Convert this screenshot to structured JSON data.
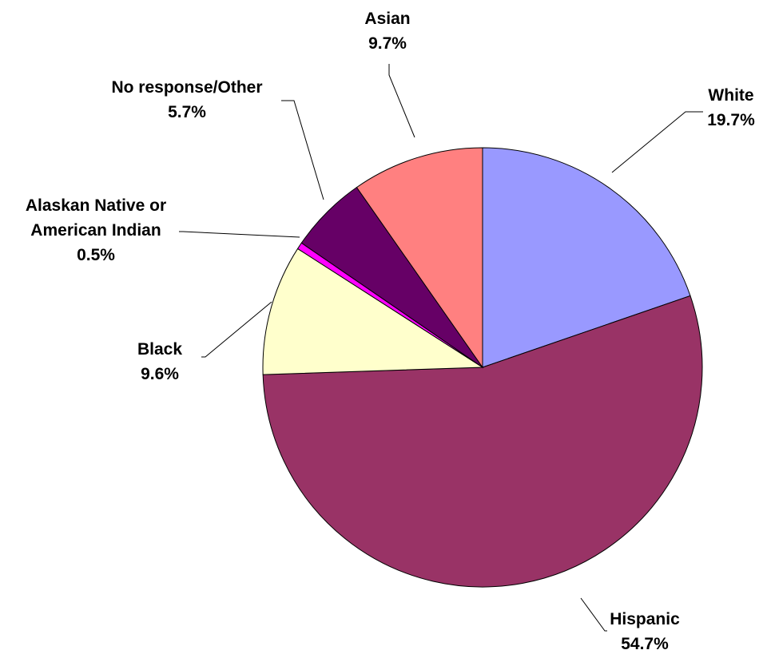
{
  "chart_data": {
    "type": "pie",
    "title": "",
    "start_angle_deg": 0,
    "direction": "clockwise",
    "slices": [
      {
        "label": "White",
        "lines": [
          "White"
        ],
        "value_text": "19.7%",
        "value": 19.7,
        "color": "#9999FF"
      },
      {
        "label": "Hispanic",
        "lines": [
          "Hispanic"
        ],
        "value_text": "54.7%",
        "value": 54.7,
        "color": "#993366"
      },
      {
        "label": "Black",
        "lines": [
          "Black"
        ],
        "value_text": "9.6%",
        "value": 9.6,
        "color": "#FFFFCC"
      },
      {
        "label": "Alaskan Native or American Indian",
        "lines": [
          "Alaskan Native or",
          "American Indian"
        ],
        "value_text": "0.5%",
        "value": 0.5,
        "color": "#FF00FF"
      },
      {
        "label": "No response/Other",
        "lines": [
          "No response/Other"
        ],
        "value_text": "5.7%",
        "value": 5.7,
        "color": "#660066"
      },
      {
        "label": "Asian",
        "lines": [
          "Asian"
        ],
        "value_text": "9.7%",
        "value": 9.7,
        "color": "#FF8080"
      }
    ]
  }
}
